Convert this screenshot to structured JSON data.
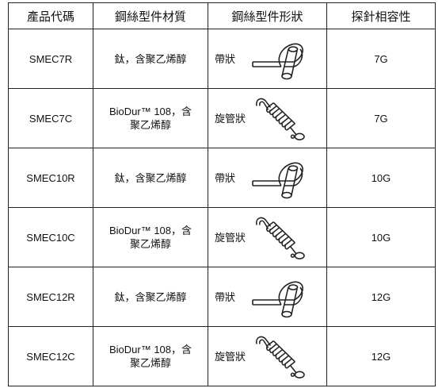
{
  "table": {
    "header": [
      "產品代碼",
      "鋼絲型件材質",
      "鋼絲型件形狀",
      "探針相容性"
    ],
    "rows": [
      [
        "SMEC7R",
        "鈦，含聚乙烯醇",
        "帶狀",
        "7G"
      ],
      [
        "SMEC7C",
        "BioDur™ 108，含聚乙烯醇",
        "旋管狀",
        "7G"
      ],
      [
        "SMEC10R",
        "鈦，含聚乙烯醇",
        "帶狀",
        "10G"
      ],
      [
        "SMEC10C",
        "BioDur™ 108，含聚乙烯醇",
        "旋管狀",
        "10G"
      ],
      [
        "SMEC12R",
        "鈦，含聚乙烯醇",
        "帶狀",
        "12G"
      ],
      [
        "SMEC12C",
        "BioDur™ 108，含聚乙烯醇",
        "旋管狀",
        "12G"
      ]
    ]
  }
}
